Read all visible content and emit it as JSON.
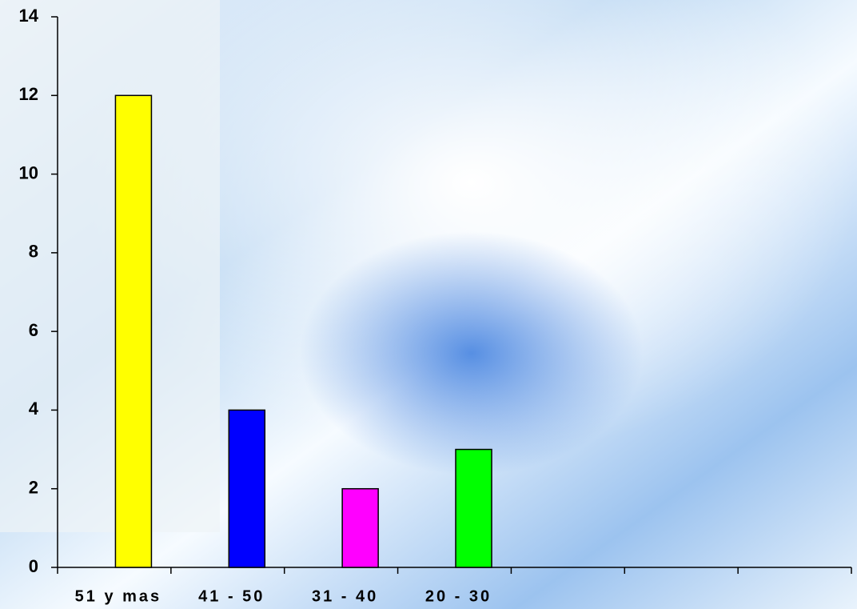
{
  "chart_data": {
    "type": "bar",
    "categories": [
      "51 y mas",
      "41 - 50",
      "31 - 40",
      "20 - 30",
      null,
      null,
      null
    ],
    "values": [
      12,
      4,
      2,
      3,
      null,
      null,
      null
    ],
    "colors": [
      "#ffff00",
      "#0000ff",
      "#ff00ff",
      "#00ff00"
    ],
    "ylim": [
      0,
      14
    ],
    "yticks": [
      0,
      2,
      4,
      6,
      8,
      10,
      12,
      14
    ],
    "grid": false
  }
}
